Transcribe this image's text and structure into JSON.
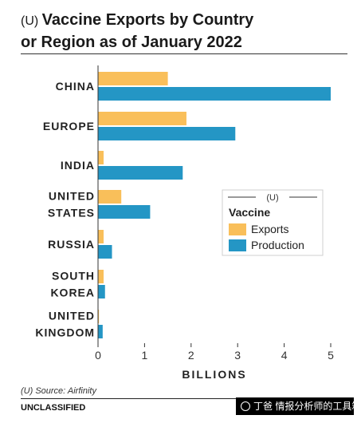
{
  "header": {
    "classification_prefix": "(U)",
    "title_line1": "Vaccine Exports by Country",
    "title_line2": "or Region as of January 2022"
  },
  "footer": {
    "source": "(U) Source: Airfinity",
    "classification": "UNCLASSIFIED",
    "watermark_text": "丁爸 情报分析师的工具箱"
  },
  "chart_data": {
    "type": "bar",
    "orientation": "horizontal",
    "categories": [
      [
        "CHINA"
      ],
      [
        "EUROPE"
      ],
      [
        "INDIA"
      ],
      [
        "UNITED",
        "STATES"
      ],
      [
        "RUSSIA"
      ],
      [
        "SOUTH",
        "KOREA"
      ],
      [
        "UNITED",
        "KINGDOM"
      ]
    ],
    "series": [
      {
        "name": "Exports",
        "color": "#f9bf5a",
        "values": [
          1.5,
          1.9,
          0.12,
          0.5,
          0.12,
          0.12,
          0.02
        ]
      },
      {
        "name": "Production",
        "color": "#2496c5",
        "values": [
          5.0,
          2.95,
          1.82,
          1.12,
          0.3,
          0.15,
          0.1
        ]
      }
    ],
    "xlabel": "BILLIONS",
    "xlim": [
      0,
      5
    ],
    "xticks": [
      "0",
      "1",
      "2",
      "3",
      "4",
      "5"
    ],
    "grid": false,
    "legend": {
      "classification": "(U)",
      "title": "Vaccine",
      "placement": "middle-right"
    }
  }
}
